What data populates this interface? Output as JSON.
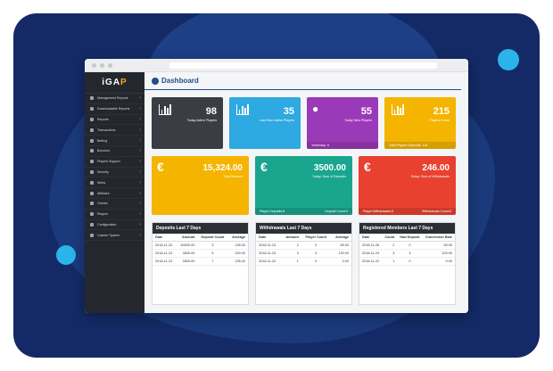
{
  "colors": {
    "frame": "#142a66",
    "accent_blue": "#2ab4ea",
    "sidebar": "#24272d",
    "title_blue": "#1e4f8a"
  },
  "app": {
    "logo_main": "iGA",
    "logo_accent": "P"
  },
  "sidebar": {
    "items": [
      {
        "label": "Management Reports"
      },
      {
        "label": "Downloadable Reports"
      },
      {
        "label": "Reports"
      },
      {
        "label": "Transactions"
      },
      {
        "label": "Betting"
      },
      {
        "label": "Bonuses"
      },
      {
        "label": "Players Support"
      },
      {
        "label": "Security"
      },
      {
        "label": "Webs"
      },
      {
        "label": "Affiliates"
      },
      {
        "label": "Games"
      },
      {
        "label": "Players"
      },
      {
        "label": "Configuration"
      },
      {
        "label": "Cashier System"
      }
    ]
  },
  "header": {
    "title": "Dashboard"
  },
  "stats": {
    "active_today": {
      "value": "98",
      "label": "Today Active Players",
      "color": "#3a3d44"
    },
    "active_last_hour": {
      "value": "35",
      "label": "Last Hour Active Players",
      "color": "#2fa9e1"
    },
    "new_players": {
      "value": "55",
      "label": "Today New Players",
      "footer": "Yesterday: 8",
      "color": "#9b3ab8"
    },
    "players_count": {
      "value": "215",
      "label": "Players Count",
      "footer": "Total Players Deposits: 115",
      "color": "#f4b400"
    }
  },
  "money": {
    "currency_icon": "€",
    "total_balance": {
      "value": "15,324.00",
      "label": "Total Balance",
      "color": "#f4b400"
    },
    "deposits": {
      "value": "3500.00",
      "label": "Today: Sum of Deposits",
      "footer_left": "Player Deposits:8",
      "footer_right": "Deposit Count:0",
      "color": "#1aa58f"
    },
    "withdrawals": {
      "value": "246.00",
      "label": "Today: Sum of Withdrawals",
      "footer_left": "Player Withdrawals:8",
      "footer_right": "Withdrawals Count:8",
      "color": "#e8412f"
    }
  },
  "deposits_table": {
    "title": "Deposits Last 7 Days",
    "headers": [
      "Date",
      "Amount",
      "Deposit Count",
      "Average"
    ],
    "rows": [
      [
        "2018-11-23",
        "54000.00",
        "3",
        "135.00"
      ],
      [
        "2018-11-23",
        "4500.00",
        "5",
        "150.00"
      ],
      [
        "2018-11-23",
        "2800.00",
        "7",
        "135.00"
      ]
    ]
  },
  "withdrawals_table": {
    "title": "Withdrawals Last 7 Days",
    "headers": [
      "Date",
      "Amount",
      "Player Count",
      "Average"
    ],
    "rows": [
      [
        "2018-11-23",
        "2",
        "0",
        "55.00"
      ],
      [
        "2018-11-23",
        "3",
        "3",
        "120.00"
      ],
      [
        "2018-11-22",
        "1",
        "0",
        "0.00"
      ]
    ]
  },
  "members_table": {
    "title": "Registered Members Last 7 Days",
    "headers": [
      "Date",
      "Count",
      "Had Deposit",
      "Conversion Rate"
    ],
    "rows": [
      [
        "2018-11-26",
        "2",
        "0",
        "55.00"
      ],
      [
        "2018-11-23",
        "3",
        "3",
        "100.00"
      ],
      [
        "2018-11-22",
        "1",
        "0",
        "0.00"
      ]
    ]
  }
}
